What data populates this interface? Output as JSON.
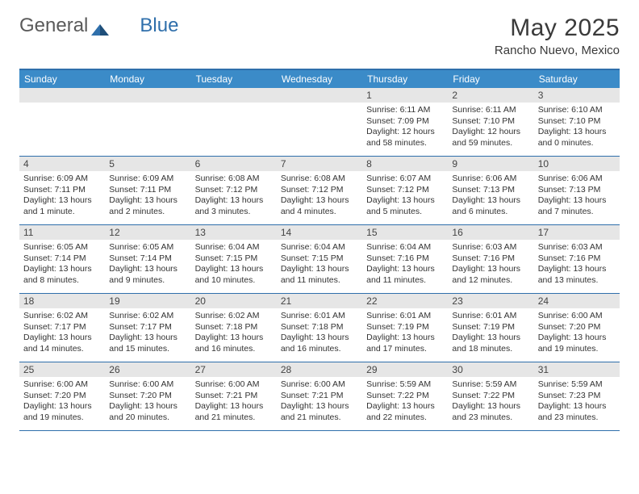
{
  "brand": {
    "part1": "General",
    "part2": "Blue"
  },
  "title": "May 2025",
  "location": "Rancho Nuevo, Mexico",
  "colors": {
    "header_band": "#3b8bc8",
    "rule": "#2f6fab",
    "day_band": "#e6e6e6",
    "text": "#333333",
    "bg": "#ffffff"
  },
  "dow": [
    "Sunday",
    "Monday",
    "Tuesday",
    "Wednesday",
    "Thursday",
    "Friday",
    "Saturday"
  ],
  "weeks": [
    [
      {
        "n": "",
        "sr": "",
        "ss": "",
        "dl": ""
      },
      {
        "n": "",
        "sr": "",
        "ss": "",
        "dl": ""
      },
      {
        "n": "",
        "sr": "",
        "ss": "",
        "dl": ""
      },
      {
        "n": "",
        "sr": "",
        "ss": "",
        "dl": ""
      },
      {
        "n": "1",
        "sr": "Sunrise: 6:11 AM",
        "ss": "Sunset: 7:09 PM",
        "dl": "Daylight: 12 hours and 58 minutes."
      },
      {
        "n": "2",
        "sr": "Sunrise: 6:11 AM",
        "ss": "Sunset: 7:10 PM",
        "dl": "Daylight: 12 hours and 59 minutes."
      },
      {
        "n": "3",
        "sr": "Sunrise: 6:10 AM",
        "ss": "Sunset: 7:10 PM",
        "dl": "Daylight: 13 hours and 0 minutes."
      }
    ],
    [
      {
        "n": "4",
        "sr": "Sunrise: 6:09 AM",
        "ss": "Sunset: 7:11 PM",
        "dl": "Daylight: 13 hours and 1 minute."
      },
      {
        "n": "5",
        "sr": "Sunrise: 6:09 AM",
        "ss": "Sunset: 7:11 PM",
        "dl": "Daylight: 13 hours and 2 minutes."
      },
      {
        "n": "6",
        "sr": "Sunrise: 6:08 AM",
        "ss": "Sunset: 7:12 PM",
        "dl": "Daylight: 13 hours and 3 minutes."
      },
      {
        "n": "7",
        "sr": "Sunrise: 6:08 AM",
        "ss": "Sunset: 7:12 PM",
        "dl": "Daylight: 13 hours and 4 minutes."
      },
      {
        "n": "8",
        "sr": "Sunrise: 6:07 AM",
        "ss": "Sunset: 7:12 PM",
        "dl": "Daylight: 13 hours and 5 minutes."
      },
      {
        "n": "9",
        "sr": "Sunrise: 6:06 AM",
        "ss": "Sunset: 7:13 PM",
        "dl": "Daylight: 13 hours and 6 minutes."
      },
      {
        "n": "10",
        "sr": "Sunrise: 6:06 AM",
        "ss": "Sunset: 7:13 PM",
        "dl": "Daylight: 13 hours and 7 minutes."
      }
    ],
    [
      {
        "n": "11",
        "sr": "Sunrise: 6:05 AM",
        "ss": "Sunset: 7:14 PM",
        "dl": "Daylight: 13 hours and 8 minutes."
      },
      {
        "n": "12",
        "sr": "Sunrise: 6:05 AM",
        "ss": "Sunset: 7:14 PM",
        "dl": "Daylight: 13 hours and 9 minutes."
      },
      {
        "n": "13",
        "sr": "Sunrise: 6:04 AM",
        "ss": "Sunset: 7:15 PM",
        "dl": "Daylight: 13 hours and 10 minutes."
      },
      {
        "n": "14",
        "sr": "Sunrise: 6:04 AM",
        "ss": "Sunset: 7:15 PM",
        "dl": "Daylight: 13 hours and 11 minutes."
      },
      {
        "n": "15",
        "sr": "Sunrise: 6:04 AM",
        "ss": "Sunset: 7:16 PM",
        "dl": "Daylight: 13 hours and 11 minutes."
      },
      {
        "n": "16",
        "sr": "Sunrise: 6:03 AM",
        "ss": "Sunset: 7:16 PM",
        "dl": "Daylight: 13 hours and 12 minutes."
      },
      {
        "n": "17",
        "sr": "Sunrise: 6:03 AM",
        "ss": "Sunset: 7:16 PM",
        "dl": "Daylight: 13 hours and 13 minutes."
      }
    ],
    [
      {
        "n": "18",
        "sr": "Sunrise: 6:02 AM",
        "ss": "Sunset: 7:17 PM",
        "dl": "Daylight: 13 hours and 14 minutes."
      },
      {
        "n": "19",
        "sr": "Sunrise: 6:02 AM",
        "ss": "Sunset: 7:17 PM",
        "dl": "Daylight: 13 hours and 15 minutes."
      },
      {
        "n": "20",
        "sr": "Sunrise: 6:02 AM",
        "ss": "Sunset: 7:18 PM",
        "dl": "Daylight: 13 hours and 16 minutes."
      },
      {
        "n": "21",
        "sr": "Sunrise: 6:01 AM",
        "ss": "Sunset: 7:18 PM",
        "dl": "Daylight: 13 hours and 16 minutes."
      },
      {
        "n": "22",
        "sr": "Sunrise: 6:01 AM",
        "ss": "Sunset: 7:19 PM",
        "dl": "Daylight: 13 hours and 17 minutes."
      },
      {
        "n": "23",
        "sr": "Sunrise: 6:01 AM",
        "ss": "Sunset: 7:19 PM",
        "dl": "Daylight: 13 hours and 18 minutes."
      },
      {
        "n": "24",
        "sr": "Sunrise: 6:00 AM",
        "ss": "Sunset: 7:20 PM",
        "dl": "Daylight: 13 hours and 19 minutes."
      }
    ],
    [
      {
        "n": "25",
        "sr": "Sunrise: 6:00 AM",
        "ss": "Sunset: 7:20 PM",
        "dl": "Daylight: 13 hours and 19 minutes."
      },
      {
        "n": "26",
        "sr": "Sunrise: 6:00 AM",
        "ss": "Sunset: 7:20 PM",
        "dl": "Daylight: 13 hours and 20 minutes."
      },
      {
        "n": "27",
        "sr": "Sunrise: 6:00 AM",
        "ss": "Sunset: 7:21 PM",
        "dl": "Daylight: 13 hours and 21 minutes."
      },
      {
        "n": "28",
        "sr": "Sunrise: 6:00 AM",
        "ss": "Sunset: 7:21 PM",
        "dl": "Daylight: 13 hours and 21 minutes."
      },
      {
        "n": "29",
        "sr": "Sunrise: 5:59 AM",
        "ss": "Sunset: 7:22 PM",
        "dl": "Daylight: 13 hours and 22 minutes."
      },
      {
        "n": "30",
        "sr": "Sunrise: 5:59 AM",
        "ss": "Sunset: 7:22 PM",
        "dl": "Daylight: 13 hours and 23 minutes."
      },
      {
        "n": "31",
        "sr": "Sunrise: 5:59 AM",
        "ss": "Sunset: 7:23 PM",
        "dl": "Daylight: 13 hours and 23 minutes."
      }
    ]
  ]
}
